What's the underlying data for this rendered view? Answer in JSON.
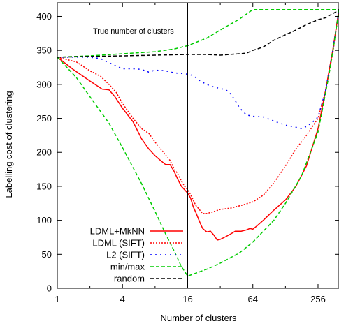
{
  "chart_data": {
    "type": "line",
    "xlabel": "Number of clusters",
    "ylabel": "Labelling cost of clustering",
    "x_scale": "log2",
    "xlim": [
      1,
      400
    ],
    "ylim": [
      0,
      420
    ],
    "x_ticks": [
      1,
      4,
      16,
      64,
      256
    ],
    "x_tick_labels": [
      "1",
      "4",
      "16",
      "64",
      "256"
    ],
    "y_ticks": [
      0,
      50,
      100,
      150,
      200,
      250,
      300,
      350,
      400
    ],
    "y_tick_labels": [
      "0",
      "50",
      "100",
      "150",
      "200",
      "250",
      "300",
      "350",
      "400"
    ],
    "grid": false,
    "legend_position": "bottom-left",
    "annotation": {
      "text": "True number of clusters",
      "x": 16
    },
    "series": [
      {
        "name": "LDML+MkNN",
        "color": "#ff0000",
        "dash": "solid",
        "points": [
          [
            1,
            340
          ],
          [
            1.4,
            322
          ],
          [
            2,
            305
          ],
          [
            2.6,
            293
          ],
          [
            3,
            292
          ],
          [
            3.4,
            282
          ],
          [
            4,
            265
          ],
          [
            5,
            245
          ],
          [
            5.5,
            232
          ],
          [
            6,
            220
          ],
          [
            7,
            205
          ],
          [
            8,
            195
          ],
          [
            9,
            188
          ],
          [
            10,
            182
          ],
          [
            11,
            182
          ],
          [
            12,
            172
          ],
          [
            13,
            160
          ],
          [
            14,
            150
          ],
          [
            15,
            145
          ],
          [
            16,
            140
          ],
          [
            17,
            133
          ],
          [
            18,
            120
          ],
          [
            19,
            112
          ],
          [
            20,
            103
          ],
          [
            21,
            95
          ],
          [
            22,
            88
          ],
          [
            24,
            83
          ],
          [
            26,
            84
          ],
          [
            28,
            78
          ],
          [
            30,
            71
          ],
          [
            32,
            72
          ],
          [
            36,
            76
          ],
          [
            40,
            80
          ],
          [
            44,
            84
          ],
          [
            50,
            84
          ],
          [
            56,
            86
          ],
          [
            60,
            88
          ],
          [
            64,
            87
          ],
          [
            70,
            92
          ],
          [
            80,
            100
          ],
          [
            100,
            115
          ],
          [
            128,
            130
          ],
          [
            160,
            150
          ],
          [
            200,
            180
          ],
          [
            256,
            235
          ],
          [
            300,
            290
          ],
          [
            350,
            350
          ],
          [
            400,
            410
          ]
        ]
      },
      {
        "name": "LDML (SIFT)",
        "color": "#ff0000",
        "dash": "dotted",
        "points": [
          [
            1,
            340
          ],
          [
            1.5,
            333
          ],
          [
            2,
            320
          ],
          [
            2.5,
            312
          ],
          [
            3,
            300
          ],
          [
            3.5,
            288
          ],
          [
            4,
            272
          ],
          [
            5,
            250
          ],
          [
            6,
            235
          ],
          [
            7,
            228
          ],
          [
            8,
            215
          ],
          [
            9,
            205
          ],
          [
            10,
            196
          ],
          [
            11,
            188
          ],
          [
            12,
            176
          ],
          [
            13,
            168
          ],
          [
            14,
            158
          ],
          [
            15,
            150
          ],
          [
            16,
            145
          ],
          [
            17,
            138
          ],
          [
            18,
            130
          ],
          [
            19,
            122
          ],
          [
            20,
            118
          ],
          [
            22,
            110
          ],
          [
            24,
            110
          ],
          [
            28,
            113
          ],
          [
            32,
            116
          ],
          [
            40,
            118
          ],
          [
            50,
            122
          ],
          [
            64,
            127
          ],
          [
            80,
            137
          ],
          [
            100,
            155
          ],
          [
            128,
            180
          ],
          [
            160,
            205
          ],
          [
            200,
            225
          ],
          [
            256,
            250
          ],
          [
            300,
            290
          ],
          [
            350,
            345
          ],
          [
            400,
            410
          ]
        ]
      },
      {
        "name": "L2 (SIFT)",
        "color": "#0000ff",
        "dash": "dash-dot",
        "points": [
          [
            1,
            340
          ],
          [
            1.5,
            340
          ],
          [
            2,
            340
          ],
          [
            2.5,
            338
          ],
          [
            3,
            332
          ],
          [
            3.5,
            327
          ],
          [
            4,
            323
          ],
          [
            5,
            323
          ],
          [
            6,
            322
          ],
          [
            7,
            318
          ],
          [
            8,
            321
          ],
          [
            10,
            320
          ],
          [
            12,
            317
          ],
          [
            14,
            316
          ],
          [
            16,
            315
          ],
          [
            18,
            313
          ],
          [
            20,
            307
          ],
          [
            22,
            303
          ],
          [
            24,
            300
          ],
          [
            28,
            296
          ],
          [
            32,
            294
          ],
          [
            36,
            292
          ],
          [
            40,
            286
          ],
          [
            44,
            276
          ],
          [
            48,
            266
          ],
          [
            52,
            260
          ],
          [
            56,
            255
          ],
          [
            64,
            253
          ],
          [
            80,
            252
          ],
          [
            100,
            246
          ],
          [
            128,
            240
          ],
          [
            150,
            238
          ],
          [
            180,
            235
          ],
          [
            200,
            238
          ],
          [
            230,
            245
          ],
          [
            256,
            252
          ],
          [
            300,
            290
          ],
          [
            350,
            350
          ],
          [
            400,
            410
          ]
        ]
      },
      {
        "name": "min/max",
        "color": "#00cc00",
        "dash": "dashed",
        "points": [
          [
            1,
            340
          ],
          [
            1.5,
            310
          ],
          [
            2,
            282
          ],
          [
            3,
            243
          ],
          [
            4,
            207
          ],
          [
            6,
            154
          ],
          [
            8,
            113
          ],
          [
            10,
            80
          ],
          [
            12,
            55
          ],
          [
            14,
            32
          ],
          [
            16,
            18
          ],
          [
            24,
            28
          ],
          [
            32,
            37
          ],
          [
            48,
            52
          ],
          [
            64,
            68
          ],
          [
            100,
            100
          ],
          [
            128,
            125
          ],
          [
            180,
            165
          ],
          [
            256,
            230
          ],
          [
            320,
            310
          ],
          [
            360,
            360
          ],
          [
            400,
            410
          ]
        ],
        "points_upper": [
          [
            1,
            340
          ],
          [
            2,
            342
          ],
          [
            4,
            345
          ],
          [
            8,
            348
          ],
          [
            12,
            352
          ],
          [
            16,
            357
          ],
          [
            24,
            368
          ],
          [
            32,
            380
          ],
          [
            48,
            396
          ],
          [
            64,
            410
          ],
          [
            128,
            410
          ],
          [
            256,
            410
          ],
          [
            400,
            410
          ]
        ]
      },
      {
        "name": "random",
        "color": "#000000",
        "dash": "dashed",
        "points": [
          [
            1,
            340
          ],
          [
            2,
            341
          ],
          [
            4,
            342
          ],
          [
            8,
            343
          ],
          [
            16,
            344
          ],
          [
            24,
            344
          ],
          [
            32,
            343
          ],
          [
            48,
            345
          ],
          [
            56,
            346
          ],
          [
            64,
            350
          ],
          [
            80,
            355
          ],
          [
            100,
            365
          ],
          [
            128,
            373
          ],
          [
            160,
            380
          ],
          [
            200,
            388
          ],
          [
            256,
            395
          ],
          [
            300,
            398
          ],
          [
            340,
            403
          ],
          [
            370,
            406
          ],
          [
            400,
            410
          ]
        ]
      }
    ]
  }
}
